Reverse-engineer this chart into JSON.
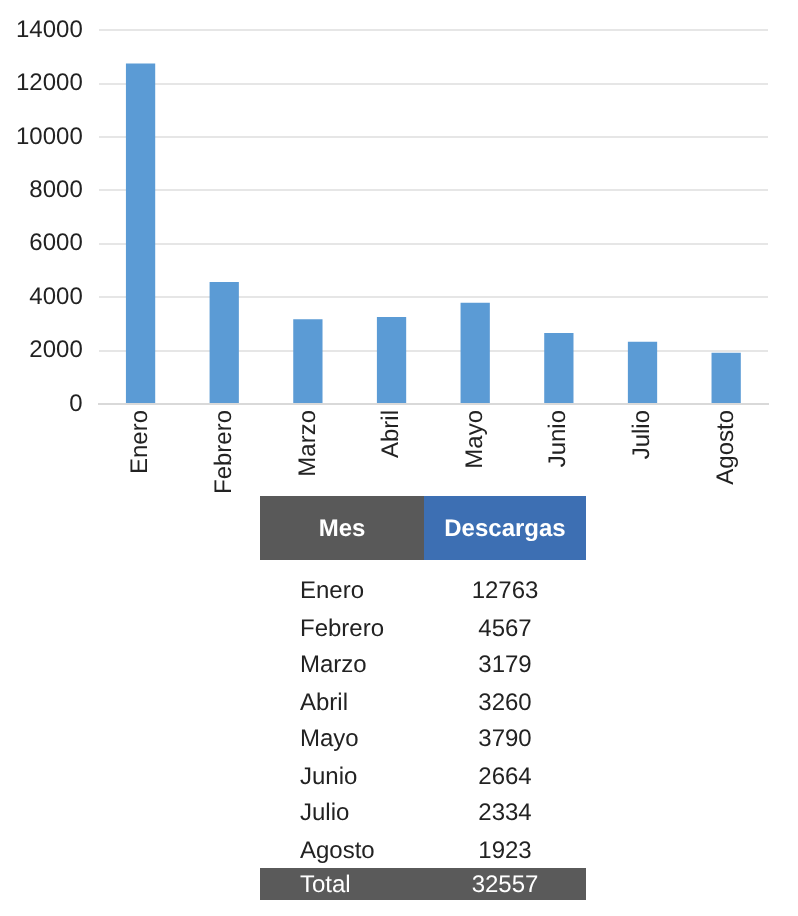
{
  "chart_data": [
    {
      "type": "bar",
      "categories": [
        "Enero",
        "Febrero",
        "Marzo",
        "Abril",
        "Mayo",
        "Junio",
        "Julio",
        "Agosto"
      ],
      "values": [
        12763,
        4567,
        3179,
        3260,
        3790,
        2664,
        2334,
        1923
      ],
      "color": "#5b9bd5",
      "ylim": [
        0,
        14000
      ],
      "yticks": [
        0,
        2000,
        4000,
        6000,
        8000,
        10000,
        12000,
        14000
      ],
      "grid": "y",
      "legend": false
    },
    {
      "type": "other",
      "categories": [
        "Enero",
        "Febrero",
        "Marzo",
        "Abril",
        "Mayo",
        "Junio",
        "Julio",
        "Agosto"
      ],
      "value_labels": [
        "12763",
        "4567",
        "3179",
        "3260",
        "3790",
        "2664",
        "2334",
        "1923"
      ],
      "xlabel": "Mes",
      "ylabel": "Descargas",
      "annotations": [
        "Total",
        "32557"
      ]
    }
  ]
}
